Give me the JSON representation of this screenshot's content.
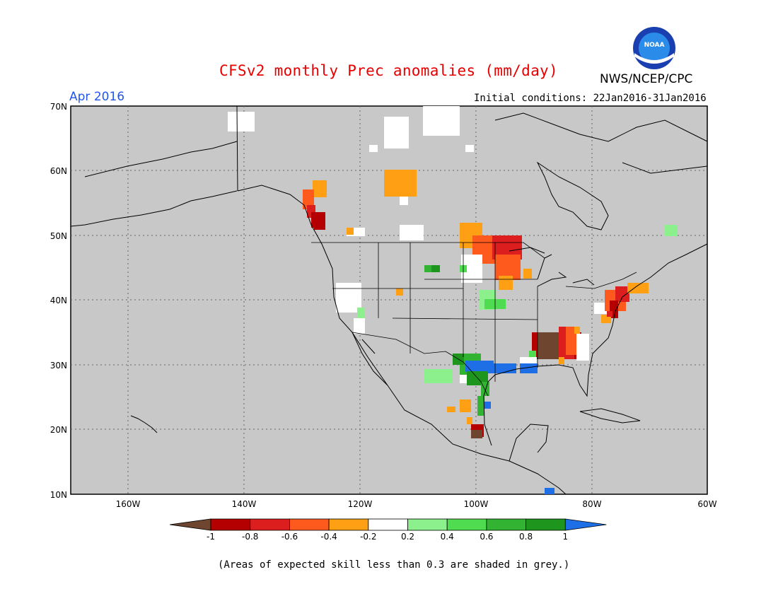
{
  "header": {
    "title": "CFSv2 monthly Prec anomalies (mm/day)",
    "period": "Apr 2016",
    "agency": "NWS/NCEP/CPC",
    "logo_text": "NOAA",
    "initial_conditions": "Initial conditions: 22Jan2016-31Jan2016"
  },
  "map": {
    "background_color": "#c8c8c8",
    "lon_ticks": [
      "160W",
      "140W",
      "120W",
      "100W",
      "80W",
      "60W"
    ],
    "lat_ticks": [
      "70N",
      "60N",
      "50N",
      "40N",
      "30N",
      "20N",
      "10N"
    ],
    "grid": "dotted"
  },
  "legend": {
    "ticks": [
      "-1",
      "-0.8",
      "-0.6",
      "-0.4",
      "-0.2",
      "0.2",
      "0.4",
      "0.6",
      "0.8",
      "1"
    ],
    "colors": [
      "#6e4630",
      "#b40000",
      "#dc1e1e",
      "#ff5a1e",
      "#ffa014",
      "#ffffff",
      "#8cf08c",
      "#50dc50",
      "#32b432",
      "#1e961e",
      "#1e6ee6"
    ]
  },
  "footer": {
    "note": "(Areas of expected skill less than 0.3 are shaded in grey.)"
  }
}
